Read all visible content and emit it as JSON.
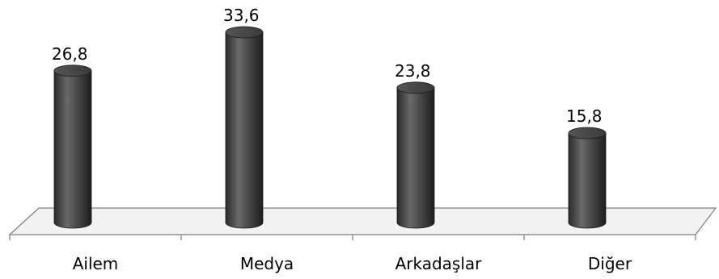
{
  "chart_data": {
    "type": "bar",
    "style": "3d-cylinder",
    "categories": [
      "Ailem",
      "Medya",
      "Arkadaşlar",
      "Diğer"
    ],
    "values": [
      26.8,
      33.6,
      23.8,
      15.8
    ],
    "value_labels": [
      "26,8",
      "33,6",
      "23,8",
      "15,8"
    ],
    "title": "",
    "xlabel": "",
    "ylabel": "",
    "ylim": [
      0,
      35
    ],
    "grid": false,
    "legend": "none",
    "bar_color": "#404040",
    "floor_color": "#f2f2f2",
    "axis_color": "#7f7f7f"
  }
}
